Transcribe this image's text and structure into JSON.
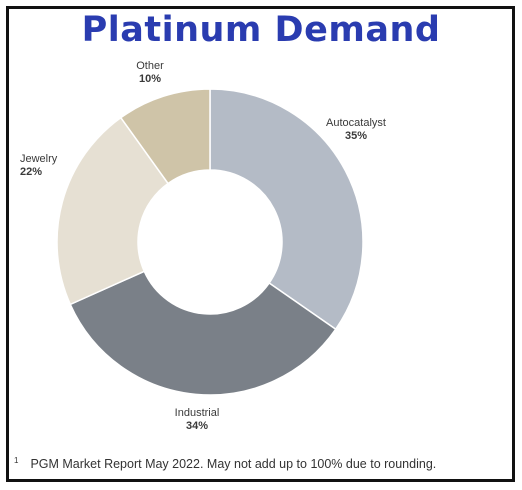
{
  "chart_data": {
    "type": "pie",
    "title": "Platinum Demand",
    "donut": true,
    "slices": [
      {
        "label": "Autocatalyst",
        "value": 35,
        "display": "35%",
        "color": "#b4bbc6"
      },
      {
        "label": "Industrial",
        "value": 34,
        "display": "34%",
        "color": "#7a8088"
      },
      {
        "label": "Jewelry",
        "value": 22,
        "display": "22%",
        "color": "#e6e0d3"
      },
      {
        "label": "Other",
        "value": 10,
        "display": "10%",
        "color": "#cfc4a8"
      }
    ]
  },
  "footnote": {
    "marker": "1",
    "text": "PGM Market Report May 2022. May not add up to 100% due to rounding."
  }
}
